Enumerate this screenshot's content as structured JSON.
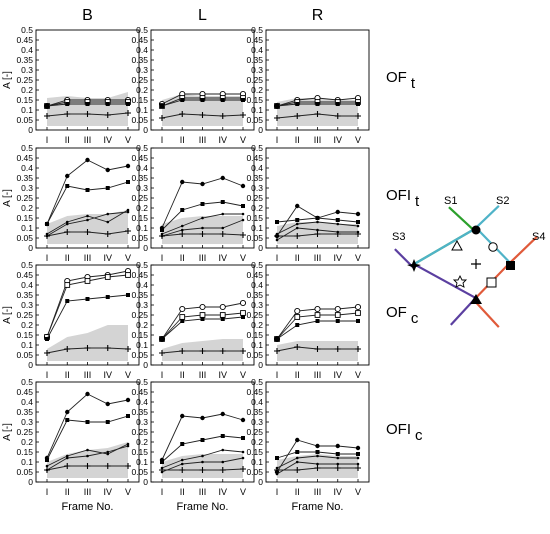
{
  "columns": [
    "B",
    "L",
    "R"
  ],
  "rows": [
    {
      "label": "OF",
      "sub": "t"
    },
    {
      "label": "OFI",
      "sub": "t"
    },
    {
      "label": "OF",
      "sub": "c"
    },
    {
      "label": "OFI",
      "sub": "c"
    }
  ],
  "ylabel": "A [-]",
  "xlabel": "Frame No.",
  "xticks": [
    "I",
    "II",
    "III",
    "IV",
    "V"
  ],
  "yticks": [
    "0",
    "0.05",
    "0.1",
    "0.15",
    "0.2",
    "0.25",
    "0.3",
    "0.35",
    "0.4",
    "0.45",
    "0.5"
  ],
  "ylim": [
    0,
    0.5
  ],
  "diagram": {
    "labels": [
      "S1",
      "S2",
      "S3",
      "S4"
    ],
    "colors": {
      "S1": "#2ca02c",
      "S2": "#4fb3c8",
      "S3": "#5b3fa0",
      "S4": "#e05a3a"
    },
    "markers": [
      "filled-circle",
      "open-triangle",
      "open-circle",
      "filled-square",
      "star-outline",
      "open-square",
      "filled-triangle",
      "filled-star",
      "plus"
    ]
  },
  "chart_data": [
    {
      "type": "line",
      "row": "OF t",
      "col": "B",
      "categories": [
        "I",
        "II",
        "III",
        "IV",
        "V"
      ],
      "band": {
        "lower": [
          0.02,
          0.02,
          0.02,
          0.02,
          0.02
        ],
        "upper": [
          0.16,
          0.17,
          0.16,
          0.16,
          0.19
        ]
      },
      "series": [
        {
          "marker": "open-circle",
          "values": [
            0.12,
            0.15,
            0.15,
            0.15,
            0.15
          ]
        },
        {
          "marker": "open-square",
          "values": [
            0.12,
            0.14,
            0.14,
            0.14,
            0.14
          ]
        },
        {
          "marker": "filled-square",
          "values": [
            0.12,
            0.13,
            0.13,
            0.13,
            0.13
          ]
        },
        {
          "marker": "plus",
          "values": [
            0.07,
            0.08,
            0.08,
            0.075,
            0.085
          ]
        }
      ]
    },
    {
      "type": "line",
      "row": "OF t",
      "col": "L",
      "categories": [
        "I",
        "II",
        "III",
        "IV",
        "V"
      ],
      "band": {
        "lower": [
          0.02,
          0.02,
          0.02,
          0.02,
          0.02
        ],
        "upper": [
          0.15,
          0.18,
          0.17,
          0.17,
          0.17
        ]
      },
      "series": [
        {
          "marker": "open-circle",
          "values": [
            0.13,
            0.18,
            0.18,
            0.18,
            0.18
          ]
        },
        {
          "marker": "open-square",
          "values": [
            0.12,
            0.16,
            0.16,
            0.16,
            0.16
          ]
        },
        {
          "marker": "filled-square",
          "values": [
            0.12,
            0.15,
            0.15,
            0.15,
            0.15
          ]
        },
        {
          "marker": "plus",
          "values": [
            0.06,
            0.08,
            0.075,
            0.07,
            0.075
          ]
        }
      ]
    },
    {
      "type": "line",
      "row": "OF t",
      "col": "R",
      "categories": [
        "I",
        "II",
        "III",
        "IV",
        "V"
      ],
      "band": {
        "lower": [
          0.02,
          0.02,
          0.02,
          0.02,
          0.02
        ],
        "upper": [
          0.14,
          0.16,
          0.16,
          0.15,
          0.15
        ]
      },
      "series": [
        {
          "marker": "open-circle",
          "values": [
            0.12,
            0.15,
            0.16,
            0.15,
            0.16
          ]
        },
        {
          "marker": "open-square",
          "values": [
            0.12,
            0.14,
            0.14,
            0.14,
            0.14
          ]
        },
        {
          "marker": "filled-square",
          "values": [
            0.12,
            0.13,
            0.13,
            0.13,
            0.13
          ]
        },
        {
          "marker": "plus",
          "values": [
            0.06,
            0.07,
            0.08,
            0.07,
            0.07
          ]
        }
      ]
    },
    {
      "type": "line",
      "row": "OFI t",
      "col": "B",
      "categories": [
        "I",
        "II",
        "III",
        "IV",
        "V"
      ],
      "band": {
        "lower": [
          0.02,
          0.02,
          0.02,
          0.02,
          0.02
        ],
        "upper": [
          0.12,
          0.16,
          0.17,
          0.17,
          0.19
        ]
      },
      "series": [
        {
          "marker": "filled-circle",
          "values": [
            0.12,
            0.36,
            0.44,
            0.39,
            0.41
          ]
        },
        {
          "marker": "filled-square",
          "values": [
            0.12,
            0.31,
            0.29,
            0.3,
            0.33
          ]
        },
        {
          "marker": "small-dot",
          "values": [
            0.07,
            0.13,
            0.16,
            0.13,
            0.19
          ]
        },
        {
          "marker": "small-dot",
          "values": [
            0.06,
            0.12,
            0.14,
            0.17,
            0.18
          ]
        },
        {
          "marker": "plus",
          "values": [
            0.06,
            0.08,
            0.08,
            0.07,
            0.085
          ]
        }
      ]
    },
    {
      "type": "line",
      "row": "OFI t",
      "col": "L",
      "categories": [
        "I",
        "II",
        "III",
        "IV",
        "V"
      ],
      "band": {
        "lower": [
          0.02,
          0.02,
          0.02,
          0.02,
          0.02
        ],
        "upper": [
          0.12,
          0.15,
          0.16,
          0.16,
          0.16
        ]
      },
      "series": [
        {
          "marker": "filled-circle",
          "values": [
            0.1,
            0.33,
            0.32,
            0.35,
            0.31
          ]
        },
        {
          "marker": "filled-square",
          "values": [
            0.09,
            0.19,
            0.22,
            0.23,
            0.21
          ]
        },
        {
          "marker": "small-dot",
          "values": [
            0.07,
            0.11,
            0.15,
            0.17,
            0.17
          ]
        },
        {
          "marker": "small-dot",
          "values": [
            0.06,
            0.09,
            0.1,
            0.1,
            0.14
          ]
        },
        {
          "marker": "plus",
          "values": [
            0.06,
            0.07,
            0.07,
            0.07,
            0.065
          ]
        }
      ]
    },
    {
      "type": "line",
      "row": "OFI t",
      "col": "R",
      "categories": [
        "I",
        "II",
        "III",
        "IV",
        "V"
      ],
      "band": {
        "lower": [
          0.02,
          0.02,
          0.02,
          0.02,
          0.02
        ],
        "upper": [
          0.11,
          0.13,
          0.13,
          0.12,
          0.12
        ]
      },
      "series": [
        {
          "marker": "filled-circle",
          "values": [
            0.06,
            0.21,
            0.15,
            0.18,
            0.17
          ]
        },
        {
          "marker": "filled-square",
          "values": [
            0.13,
            0.14,
            0.15,
            0.14,
            0.13
          ]
        },
        {
          "marker": "small-dot",
          "values": [
            0.07,
            0.12,
            0.13,
            0.12,
            0.11
          ]
        },
        {
          "marker": "small-dot",
          "values": [
            0.04,
            0.1,
            0.09,
            0.08,
            0.08
          ]
        },
        {
          "marker": "plus",
          "values": [
            0.06,
            0.06,
            0.07,
            0.07,
            0.07
          ]
        }
      ]
    },
    {
      "type": "line",
      "row": "OF c",
      "col": "B",
      "categories": [
        "I",
        "II",
        "III",
        "IV",
        "V"
      ],
      "band": {
        "lower": [
          0.02,
          0.02,
          0.02,
          0.02,
          0.02
        ],
        "upper": [
          0.08,
          0.14,
          0.16,
          0.2,
          0.2
        ]
      },
      "series": [
        {
          "marker": "open-circle",
          "values": [
            0.14,
            0.42,
            0.44,
            0.45,
            0.47
          ]
        },
        {
          "marker": "open-square",
          "values": [
            0.14,
            0.4,
            0.42,
            0.44,
            0.45
          ]
        },
        {
          "marker": "filled-square",
          "values": [
            0.13,
            0.32,
            0.33,
            0.34,
            0.35
          ]
        },
        {
          "marker": "plus",
          "values": [
            0.06,
            0.08,
            0.085,
            0.085,
            0.08
          ]
        }
      ]
    },
    {
      "type": "line",
      "row": "OF c",
      "col": "L",
      "categories": [
        "I",
        "II",
        "III",
        "IV",
        "V"
      ],
      "band": {
        "lower": [
          0.02,
          0.02,
          0.02,
          0.02,
          0.02
        ],
        "upper": [
          0.08,
          0.11,
          0.12,
          0.13,
          0.13
        ]
      },
      "series": [
        {
          "marker": "open-circle",
          "values": [
            0.13,
            0.28,
            0.29,
            0.29,
            0.31
          ]
        },
        {
          "marker": "open-square",
          "values": [
            0.13,
            0.24,
            0.25,
            0.25,
            0.26
          ]
        },
        {
          "marker": "filled-square",
          "values": [
            0.13,
            0.22,
            0.23,
            0.23,
            0.24
          ]
        },
        {
          "marker": "plus",
          "values": [
            0.06,
            0.07,
            0.07,
            0.07,
            0.07
          ]
        }
      ]
    },
    {
      "type": "line",
      "row": "OF c",
      "col": "R",
      "categories": [
        "I",
        "II",
        "III",
        "IV",
        "V"
      ],
      "band": {
        "lower": [
          0.02,
          0.02,
          0.02,
          0.02,
          0.02
        ],
        "upper": [
          0.1,
          0.12,
          0.12,
          0.12,
          0.12
        ]
      },
      "series": [
        {
          "marker": "open-circle",
          "values": [
            0.13,
            0.27,
            0.28,
            0.28,
            0.29
          ]
        },
        {
          "marker": "open-square",
          "values": [
            0.13,
            0.24,
            0.25,
            0.25,
            0.26
          ]
        },
        {
          "marker": "filled-square",
          "values": [
            0.13,
            0.2,
            0.22,
            0.22,
            0.22
          ]
        },
        {
          "marker": "plus",
          "values": [
            0.07,
            0.09,
            0.08,
            0.08,
            0.08
          ]
        }
      ]
    },
    {
      "type": "line",
      "row": "OFI c",
      "col": "B",
      "categories": [
        "I",
        "II",
        "III",
        "IV",
        "V"
      ],
      "band": {
        "lower": [
          0.02,
          0.02,
          0.02,
          0.02,
          0.02
        ],
        "upper": [
          0.1,
          0.14,
          0.16,
          0.17,
          0.2
        ]
      },
      "series": [
        {
          "marker": "filled-circle",
          "values": [
            0.12,
            0.35,
            0.44,
            0.39,
            0.41
          ]
        },
        {
          "marker": "filled-square",
          "values": [
            0.11,
            0.31,
            0.3,
            0.3,
            0.33
          ]
        },
        {
          "marker": "small-dot",
          "values": [
            0.08,
            0.13,
            0.16,
            0.14,
            0.19
          ]
        },
        {
          "marker": "small-dot",
          "values": [
            0.06,
            0.12,
            0.13,
            0.15,
            0.18
          ]
        },
        {
          "marker": "plus",
          "values": [
            0.06,
            0.08,
            0.08,
            0.08,
            0.08
          ]
        }
      ]
    },
    {
      "type": "line",
      "row": "OFI c",
      "col": "L",
      "categories": [
        "I",
        "II",
        "III",
        "IV",
        "V"
      ],
      "band": {
        "lower": [
          0.02,
          0.02,
          0.02,
          0.02,
          0.02
        ],
        "upper": [
          0.1,
          0.13,
          0.14,
          0.14,
          0.14
        ]
      },
      "series": [
        {
          "marker": "filled-circle",
          "values": [
            0.11,
            0.33,
            0.32,
            0.34,
            0.31
          ]
        },
        {
          "marker": "filled-square",
          "values": [
            0.1,
            0.19,
            0.21,
            0.23,
            0.22
          ]
        },
        {
          "marker": "small-dot",
          "values": [
            0.07,
            0.11,
            0.13,
            0.16,
            0.15
          ]
        },
        {
          "marker": "small-dot",
          "values": [
            0.05,
            0.09,
            0.1,
            0.1,
            0.12
          ]
        },
        {
          "marker": "plus",
          "values": [
            0.06,
            0.06,
            0.06,
            0.06,
            0.065
          ]
        }
      ]
    },
    {
      "type": "line",
      "row": "OFI c",
      "col": "R",
      "categories": [
        "I",
        "II",
        "III",
        "IV",
        "V"
      ],
      "band": {
        "lower": [
          0.02,
          0.02,
          0.02,
          0.02,
          0.02
        ],
        "upper": [
          0.11,
          0.13,
          0.14,
          0.13,
          0.13
        ]
      },
      "series": [
        {
          "marker": "filled-circle",
          "values": [
            0.05,
            0.21,
            0.18,
            0.18,
            0.17
          ]
        },
        {
          "marker": "filled-square",
          "values": [
            0.12,
            0.15,
            0.15,
            0.14,
            0.14
          ]
        },
        {
          "marker": "small-dot",
          "values": [
            0.07,
            0.12,
            0.13,
            0.12,
            0.12
          ]
        },
        {
          "marker": "small-dot",
          "values": [
            0.04,
            0.1,
            0.09,
            0.09,
            0.09
          ]
        },
        {
          "marker": "plus",
          "values": [
            0.06,
            0.06,
            0.07,
            0.07,
            0.07
          ]
        }
      ]
    }
  ]
}
